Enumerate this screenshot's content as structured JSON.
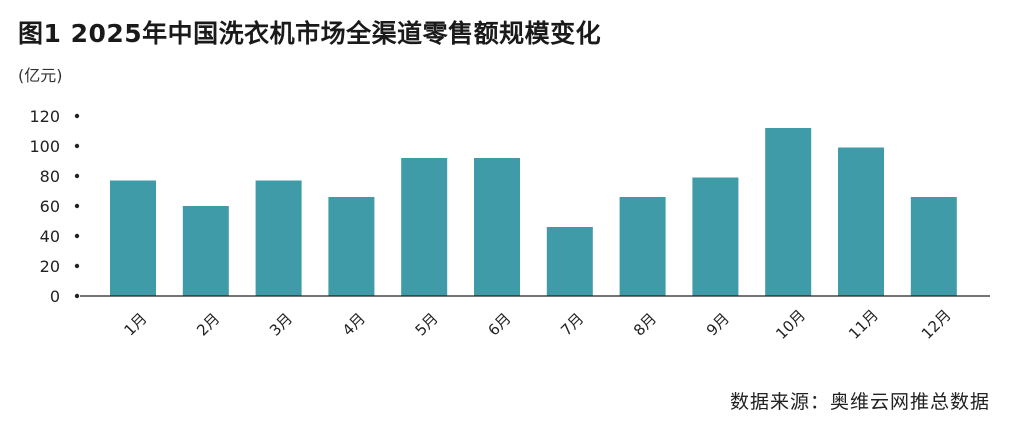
{
  "title": "图1  2025年中国洗衣机市场全渠道零售额规模变化",
  "unit_label": "(亿元)",
  "source": "数据来源：奥维云网推总数据",
  "colors": {
    "bar": "#3f9ba8",
    "axis": "#222222",
    "text": "#222222"
  },
  "chart_data": {
    "type": "bar",
    "title": "图1  2025年中国洗衣机市场全渠道零售额规模变化",
    "xlabel": "",
    "ylabel": "(亿元)",
    "categories": [
      "1月",
      "2月",
      "3月",
      "4月",
      "5月",
      "6月",
      "7月",
      "8月",
      "9月",
      "10月",
      "11月",
      "12月"
    ],
    "values": [
      77,
      60,
      77,
      66,
      92,
      92,
      46,
      66,
      79,
      112,
      99,
      66
    ],
    "ylim": [
      0,
      120
    ],
    "yticks": [
      0,
      20,
      40,
      60,
      80,
      100,
      120
    ],
    "grid": false,
    "legend": "none"
  }
}
